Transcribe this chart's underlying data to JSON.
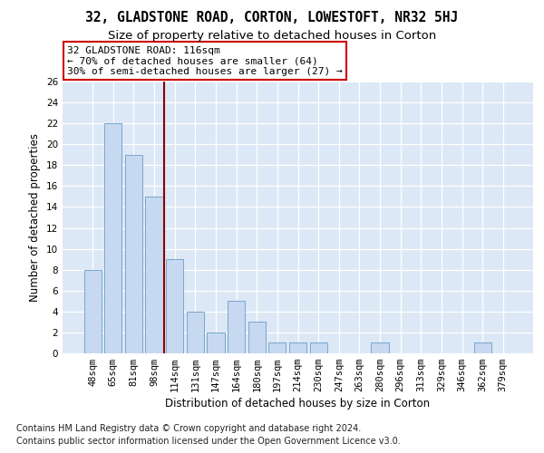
{
  "title1": "32, GLADSTONE ROAD, CORTON, LOWESTOFT, NR32 5HJ",
  "title2": "Size of property relative to detached houses in Corton",
  "xlabel": "Distribution of detached houses by size in Corton",
  "ylabel": "Number of detached properties",
  "categories": [
    "48sqm",
    "65sqm",
    "81sqm",
    "98sqm",
    "114sqm",
    "131sqm",
    "147sqm",
    "164sqm",
    "180sqm",
    "197sqm",
    "214sqm",
    "230sqm",
    "247sqm",
    "263sqm",
    "280sqm",
    "296sqm",
    "313sqm",
    "329sqm",
    "346sqm",
    "362sqm",
    "379sqm"
  ],
  "values": [
    8,
    22,
    19,
    15,
    9,
    4,
    2,
    5,
    3,
    1,
    1,
    1,
    0,
    0,
    1,
    0,
    0,
    0,
    0,
    1,
    0
  ],
  "bar_color": "#c6d9f0",
  "bar_edge_color": "#7aa6cc",
  "bar_width": 0.85,
  "vline_x": 3.5,
  "vline_color": "#8b0000",
  "annotation_text": "32 GLADSTONE ROAD: 116sqm\n← 70% of detached houses are smaller (64)\n30% of semi-detached houses are larger (27) →",
  "annotation_box_color": "white",
  "annotation_box_edgecolor": "#cc0000",
  "ylim": [
    0,
    26
  ],
  "yticks": [
    0,
    2,
    4,
    6,
    8,
    10,
    12,
    14,
    16,
    18,
    20,
    22,
    24,
    26
  ],
  "footnote1": "Contains HM Land Registry data © Crown copyright and database right 2024.",
  "footnote2": "Contains public sector information licensed under the Open Government Licence v3.0.",
  "title1_fontsize": 10.5,
  "title2_fontsize": 9.5,
  "axis_label_fontsize": 8.5,
  "tick_fontsize": 7.5,
  "annotation_fontsize": 8,
  "footnote_fontsize": 7,
  "fig_bg_color": "#ffffff",
  "plot_bg_color": "#dce8f5"
}
